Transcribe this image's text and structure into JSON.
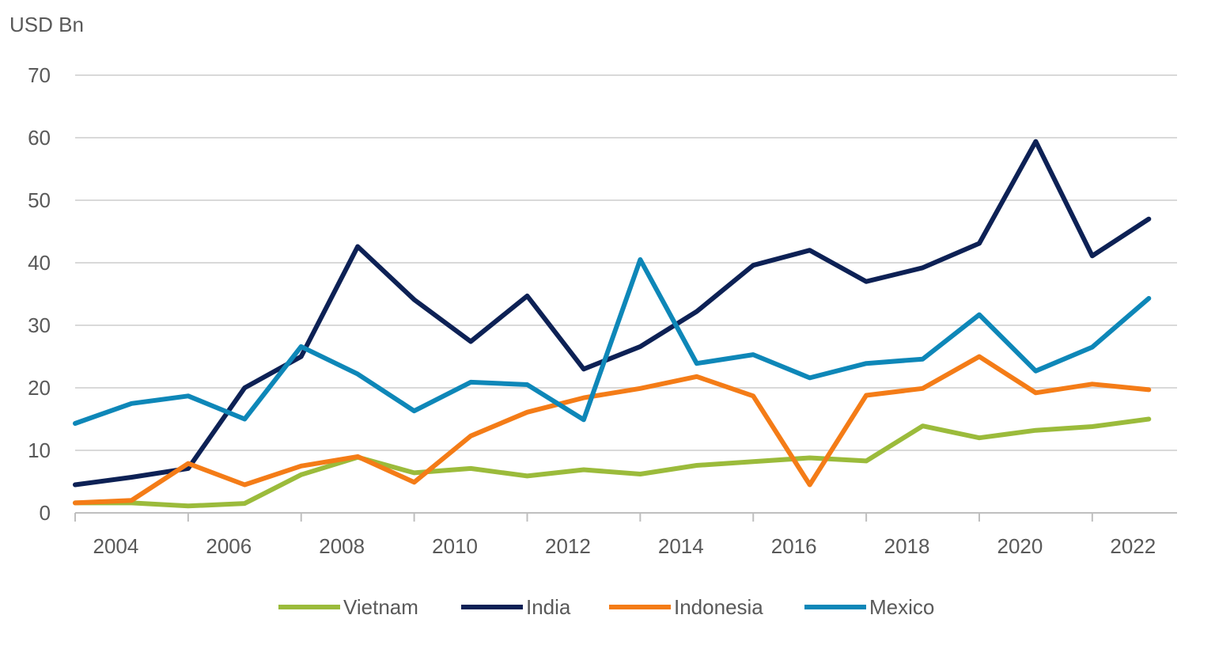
{
  "chart_data": {
    "type": "line",
    "ylabel": "USD Bn",
    "ylim": [
      0,
      70
    ],
    "yticks": [
      0,
      10,
      20,
      30,
      40,
      50,
      60,
      70
    ],
    "xticks": [
      "2004",
      "2006",
      "2008",
      "2010",
      "2012",
      "2014",
      "2016",
      "2018",
      "2020",
      "2022"
    ],
    "x": [
      2003,
      2004,
      2005,
      2006,
      2007,
      2008,
      2009,
      2010,
      2011,
      2012,
      2013,
      2014,
      2015,
      2016,
      2017,
      2018,
      2019,
      2020,
      2021,
      2022
    ],
    "grid": true,
    "legend_position": "bottom",
    "series": [
      {
        "name": "Vietnam",
        "color": "#9BBB3B",
        "values": [
          1.6,
          1.6,
          1.1,
          1.5,
          6.1,
          8.9,
          6.4,
          7.1,
          5.9,
          6.9,
          6.2,
          7.6,
          8.2,
          8.8,
          8.3,
          13.9,
          12.0,
          13.2,
          13.8,
          15.0
        ]
      },
      {
        "name": "India",
        "color": "#0D2155",
        "values": [
          4.5,
          5.7,
          7.1,
          20.0,
          25.0,
          42.6,
          34.1,
          27.4,
          34.7,
          23.0,
          26.6,
          32.2,
          39.6,
          42.0,
          37.0,
          39.2,
          43.1,
          59.4,
          41.1,
          47.0
        ]
      },
      {
        "name": "Indonesia",
        "color": "#F47C17",
        "values": [
          1.6,
          2.0,
          7.9,
          4.5,
          7.5,
          9.0,
          4.9,
          12.3,
          16.1,
          18.4,
          19.9,
          21.8,
          18.7,
          4.5,
          18.8,
          19.9,
          25.0,
          19.2,
          20.6,
          19.7
        ]
      },
      {
        "name": "Mexico",
        "color": "#0E87B8",
        "values": [
          14.3,
          17.5,
          18.7,
          15.0,
          26.6,
          22.2,
          16.3,
          20.9,
          20.5,
          14.9,
          40.5,
          23.9,
          25.3,
          21.6,
          23.9,
          24.6,
          31.7,
          22.7,
          26.5,
          34.3
        ]
      }
    ]
  }
}
